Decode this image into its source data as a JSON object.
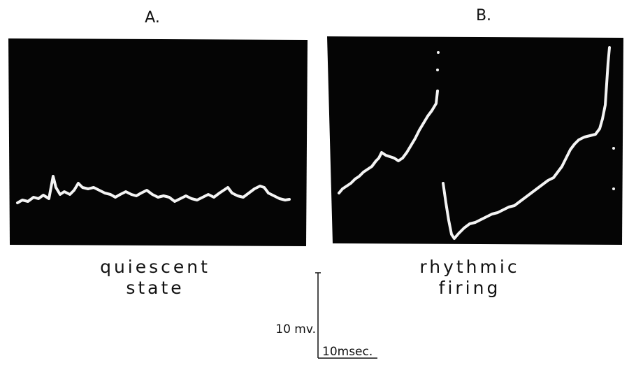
{
  "panels": [
    {
      "label": "A.",
      "caption": [
        "quiescent",
        "state"
      ]
    },
    {
      "label": "B.",
      "caption": [
        "rhythmic",
        "firing"
      ]
    }
  ],
  "scale_bar": {
    "vertical_label": "10 mv.",
    "horizontal_label": "10msec."
  }
}
